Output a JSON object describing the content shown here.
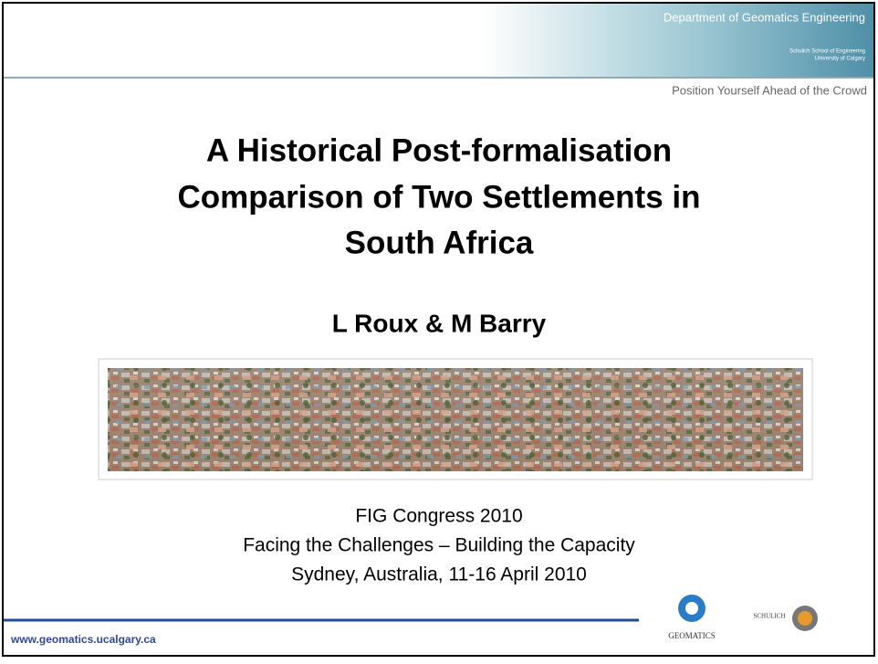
{
  "header": {
    "department": "Department of Geomatics Engineering",
    "school": [
      "Schulich School of Engineering",
      "University of Calgary"
    ],
    "tagline": "Position Yourself Ahead of the Crowd"
  },
  "title": [
    "A Historical Post-formalisation",
    "Comparison of Two Settlements in",
    "South Africa"
  ],
  "authors": "L Roux & M Barry",
  "event": [
    "FIG Congress 2010",
    "Facing the Challenges – Building the Capacity",
    "Sydney, Australia, 11-16 April 2010"
  ],
  "footer": {
    "url": "www.geomatics.ucalgary.ca",
    "logos": [
      "GEOMATICS",
      "SCHULICH"
    ]
  }
}
